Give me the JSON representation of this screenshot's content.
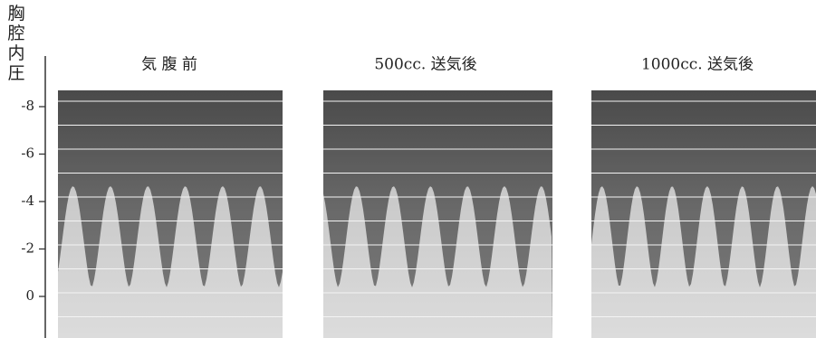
{
  "y_axis": {
    "label": [
      "胸",
      "腔",
      "内",
      "圧"
    ],
    "ticks": [
      -8,
      -6,
      -4,
      -2,
      0
    ]
  },
  "panels": [
    {
      "title": "気 腹 前"
    },
    {
      "title": "500cc. 送気後"
    },
    {
      "title": "1000cc. 送気後"
    }
  ]
}
